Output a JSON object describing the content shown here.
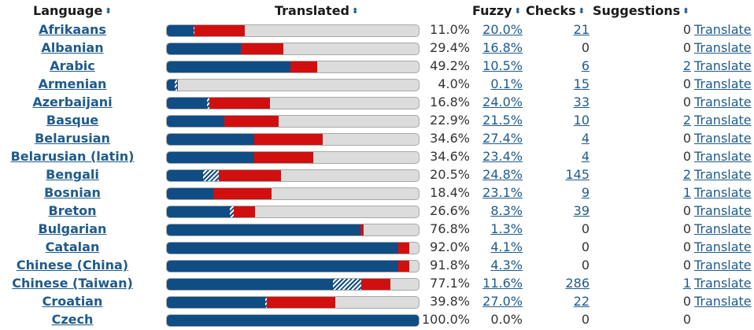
{
  "header": {
    "language": "Language",
    "translated": "Translated",
    "fuzzy": "Fuzzy",
    "checks": "Checks",
    "suggestions": "Suggestions",
    "sort_icon": "sort-arrows-icon"
  },
  "colors": {
    "translated": "#0f4d84",
    "fuzzy": "#d10f0f",
    "untranslated": "#dcdcdc",
    "link": "#1f5a8c"
  },
  "rows": [
    {
      "language": "Afrikaans",
      "translated": "11.0%",
      "approved": 10.5,
      "unapproved": 0.5,
      "fuzzy_bar": 20.0,
      "fuzzy": "20.0%",
      "fuzzy_link": true,
      "checks": "21",
      "checks_link": true,
      "suggestions": "0",
      "suggestions_link": false,
      "action": "Translate"
    },
    {
      "language": "Albanian",
      "translated": "29.4%",
      "approved": 29.4,
      "unapproved": 0,
      "fuzzy_bar": 16.8,
      "fuzzy": "16.8%",
      "fuzzy_link": true,
      "checks": "0",
      "checks_link": false,
      "suggestions": "0",
      "suggestions_link": false,
      "action": "Translate"
    },
    {
      "language": "Arabic",
      "translated": "49.2%",
      "approved": 49.2,
      "unapproved": 0,
      "fuzzy_bar": 10.5,
      "fuzzy": "10.5%",
      "fuzzy_link": true,
      "checks": "6",
      "checks_link": true,
      "suggestions": "2",
      "suggestions_link": true,
      "action": "Translate"
    },
    {
      "language": "Armenian",
      "translated": "4.0%",
      "approved": 3.2,
      "unapproved": 0.8,
      "fuzzy_bar": 0.1,
      "fuzzy": "0.1%",
      "fuzzy_link": true,
      "checks": "15",
      "checks_link": true,
      "suggestions": "0",
      "suggestions_link": false,
      "action": "Translate"
    },
    {
      "language": "Azerbaijani",
      "translated": "16.8%",
      "approved": 16.0,
      "unapproved": 0.8,
      "fuzzy_bar": 24.0,
      "fuzzy": "24.0%",
      "fuzzy_link": true,
      "checks": "33",
      "checks_link": true,
      "suggestions": "0",
      "suggestions_link": false,
      "action": "Translate"
    },
    {
      "language": "Basque",
      "translated": "22.9%",
      "approved": 22.9,
      "unapproved": 0,
      "fuzzy_bar": 21.5,
      "fuzzy": "21.5%",
      "fuzzy_link": true,
      "checks": "10",
      "checks_link": true,
      "suggestions": "2",
      "suggestions_link": true,
      "action": "Translate"
    },
    {
      "language": "Belarusian",
      "translated": "34.6%",
      "approved": 34.6,
      "unapproved": 0,
      "fuzzy_bar": 27.4,
      "fuzzy": "27.4%",
      "fuzzy_link": true,
      "checks": "4",
      "checks_link": true,
      "suggestions": "0",
      "suggestions_link": false,
      "action": "Translate"
    },
    {
      "language": "Belarusian (latin)",
      "translated": "34.6%",
      "approved": 34.6,
      "unapproved": 0,
      "fuzzy_bar": 23.4,
      "fuzzy": "23.4%",
      "fuzzy_link": true,
      "checks": "4",
      "checks_link": true,
      "suggestions": "0",
      "suggestions_link": false,
      "action": "Translate"
    },
    {
      "language": "Bengali",
      "translated": "20.5%",
      "approved": 14.5,
      "unapproved": 6.0,
      "fuzzy_bar": 24.8,
      "fuzzy": "24.8%",
      "fuzzy_link": true,
      "checks": "145",
      "checks_link": true,
      "suggestions": "2",
      "suggestions_link": true,
      "action": "Translate"
    },
    {
      "language": "Bosnian",
      "translated": "18.4%",
      "approved": 18.4,
      "unapproved": 0,
      "fuzzy_bar": 23.1,
      "fuzzy": "23.1%",
      "fuzzy_link": true,
      "checks": "9",
      "checks_link": true,
      "suggestions": "1",
      "suggestions_link": true,
      "action": "Translate"
    },
    {
      "language": "Breton",
      "translated": "26.6%",
      "approved": 24.9,
      "unapproved": 1.7,
      "fuzzy_bar": 8.3,
      "fuzzy": "8.3%",
      "fuzzy_link": true,
      "checks": "39",
      "checks_link": true,
      "suggestions": "0",
      "suggestions_link": false,
      "action": "Translate"
    },
    {
      "language": "Bulgarian",
      "translated": "76.8%",
      "approved": 76.8,
      "unapproved": 0,
      "fuzzy_bar": 1.3,
      "fuzzy": "1.3%",
      "fuzzy_link": true,
      "checks": "0",
      "checks_link": false,
      "suggestions": "0",
      "suggestions_link": false,
      "action": "Translate"
    },
    {
      "language": "Catalan",
      "translated": "92.0%",
      "approved": 92.0,
      "unapproved": 0,
      "fuzzy_bar": 4.1,
      "fuzzy": "4.1%",
      "fuzzy_link": true,
      "checks": "0",
      "checks_link": false,
      "suggestions": "0",
      "suggestions_link": false,
      "action": "Translate"
    },
    {
      "language": "Chinese (China)",
      "translated": "91.8%",
      "approved": 91.8,
      "unapproved": 0,
      "fuzzy_bar": 4.3,
      "fuzzy": "4.3%",
      "fuzzy_link": true,
      "checks": "0",
      "checks_link": false,
      "suggestions": "0",
      "suggestions_link": false,
      "action": "Translate"
    },
    {
      "language": "Chinese (Taiwan)",
      "translated": "77.1%",
      "approved": 65.9,
      "unapproved": 11.2,
      "fuzzy_bar": 11.6,
      "fuzzy": "11.6%",
      "fuzzy_link": true,
      "checks": "286",
      "checks_link": true,
      "suggestions": "1",
      "suggestions_link": true,
      "action": "Translate"
    },
    {
      "language": "Croatian",
      "translated": "39.8%",
      "approved": 39.2,
      "unapproved": 0.6,
      "fuzzy_bar": 27.0,
      "fuzzy": "27.0%",
      "fuzzy_link": true,
      "checks": "22",
      "checks_link": true,
      "suggestions": "0",
      "suggestions_link": false,
      "action": "Translate"
    },
    {
      "language": "Czech",
      "translated": "100.0%",
      "approved": 100.0,
      "unapproved": 0,
      "fuzzy_bar": 0.0,
      "fuzzy": "0.0%",
      "fuzzy_link": false,
      "checks": "0",
      "checks_link": false,
      "suggestions": "0",
      "suggestions_link": false,
      "action": ""
    }
  ]
}
